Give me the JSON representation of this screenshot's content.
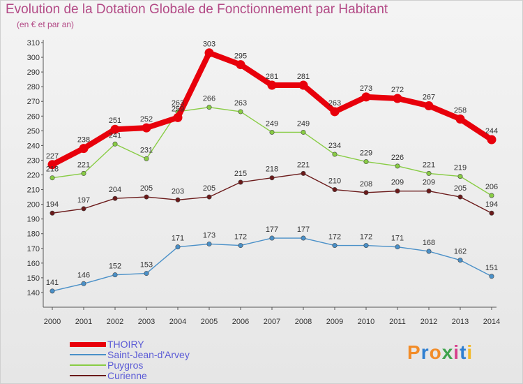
{
  "title": "Evolution de la Dotation Globale de Fonctionnement par Habitant",
  "subtitle": "(en € et par an)",
  "logo": "Proxiti",
  "colors": {
    "title": "#b34a86",
    "legend_text": "#5b5bd6",
    "axis": "#555555"
  },
  "chart_data": {
    "type": "line",
    "title": "Evolution de la Dotation Globale de Fonctionnement par Habitant",
    "subtitle": "(en € et par an)",
    "x": [
      "2000",
      "2001",
      "2002",
      "2003",
      "2004",
      "2005",
      "2006",
      "2007",
      "2008",
      "2009",
      "2010",
      "2011",
      "2012",
      "2013",
      "2014"
    ],
    "ylim": [
      130,
      310
    ],
    "yticks": [
      140,
      150,
      160,
      170,
      180,
      190,
      200,
      210,
      220,
      230,
      240,
      250,
      260,
      270,
      280,
      290,
      300,
      310
    ],
    "grid": false,
    "legend": "bottom-left",
    "series": [
      {
        "name": "THOIRY",
        "color": "#e8000b",
        "values": [
          227,
          238,
          251,
          252,
          259,
          303,
          295,
          281,
          281,
          263,
          273,
          272,
          267,
          258,
          244
        ],
        "labels": [
          "227",
          "238",
          "251",
          "252",
          "259",
          "303",
          "295",
          "281",
          "281",
          "263",
          "273",
          "272",
          "267",
          "258",
          "244"
        ]
      },
      {
        "name": "Saint-Jean-d'Arvey",
        "color": "#4a90c8",
        "values": [
          141,
          146,
          152,
          153,
          171,
          173,
          172,
          177,
          177,
          172,
          172,
          171,
          168,
          162,
          151
        ],
        "labels": [
          "141",
          "146",
          "152",
          "153",
          "171",
          "173",
          "172",
          "177",
          "177",
          "172",
          "172",
          "171",
          "168",
          "162",
          "151"
        ]
      },
      {
        "name": "Puygros",
        "color": "#88cc44",
        "values": [
          218,
          221,
          241,
          231,
          263,
          266,
          263,
          249,
          249,
          234,
          229,
          226,
          221,
          219,
          206
        ],
        "labels": [
          "218",
          "221",
          "241",
          "231",
          "263",
          "266",
          "263",
          "249",
          "249",
          "234",
          "229",
          "226",
          "221",
          "219",
          "206"
        ]
      },
      {
        "name": "Curienne",
        "color": "#6b1a1a",
        "values": [
          194,
          197,
          204,
          205,
          203,
          205,
          215,
          218,
          221,
          210,
          208,
          209,
          209,
          205,
          194
        ],
        "labels": [
          "194",
          "197",
          "204",
          "205",
          "203",
          "205",
          "215",
          "218",
          "221",
          "210",
          "208",
          "209",
          "209",
          "205",
          "194"
        ]
      }
    ]
  }
}
